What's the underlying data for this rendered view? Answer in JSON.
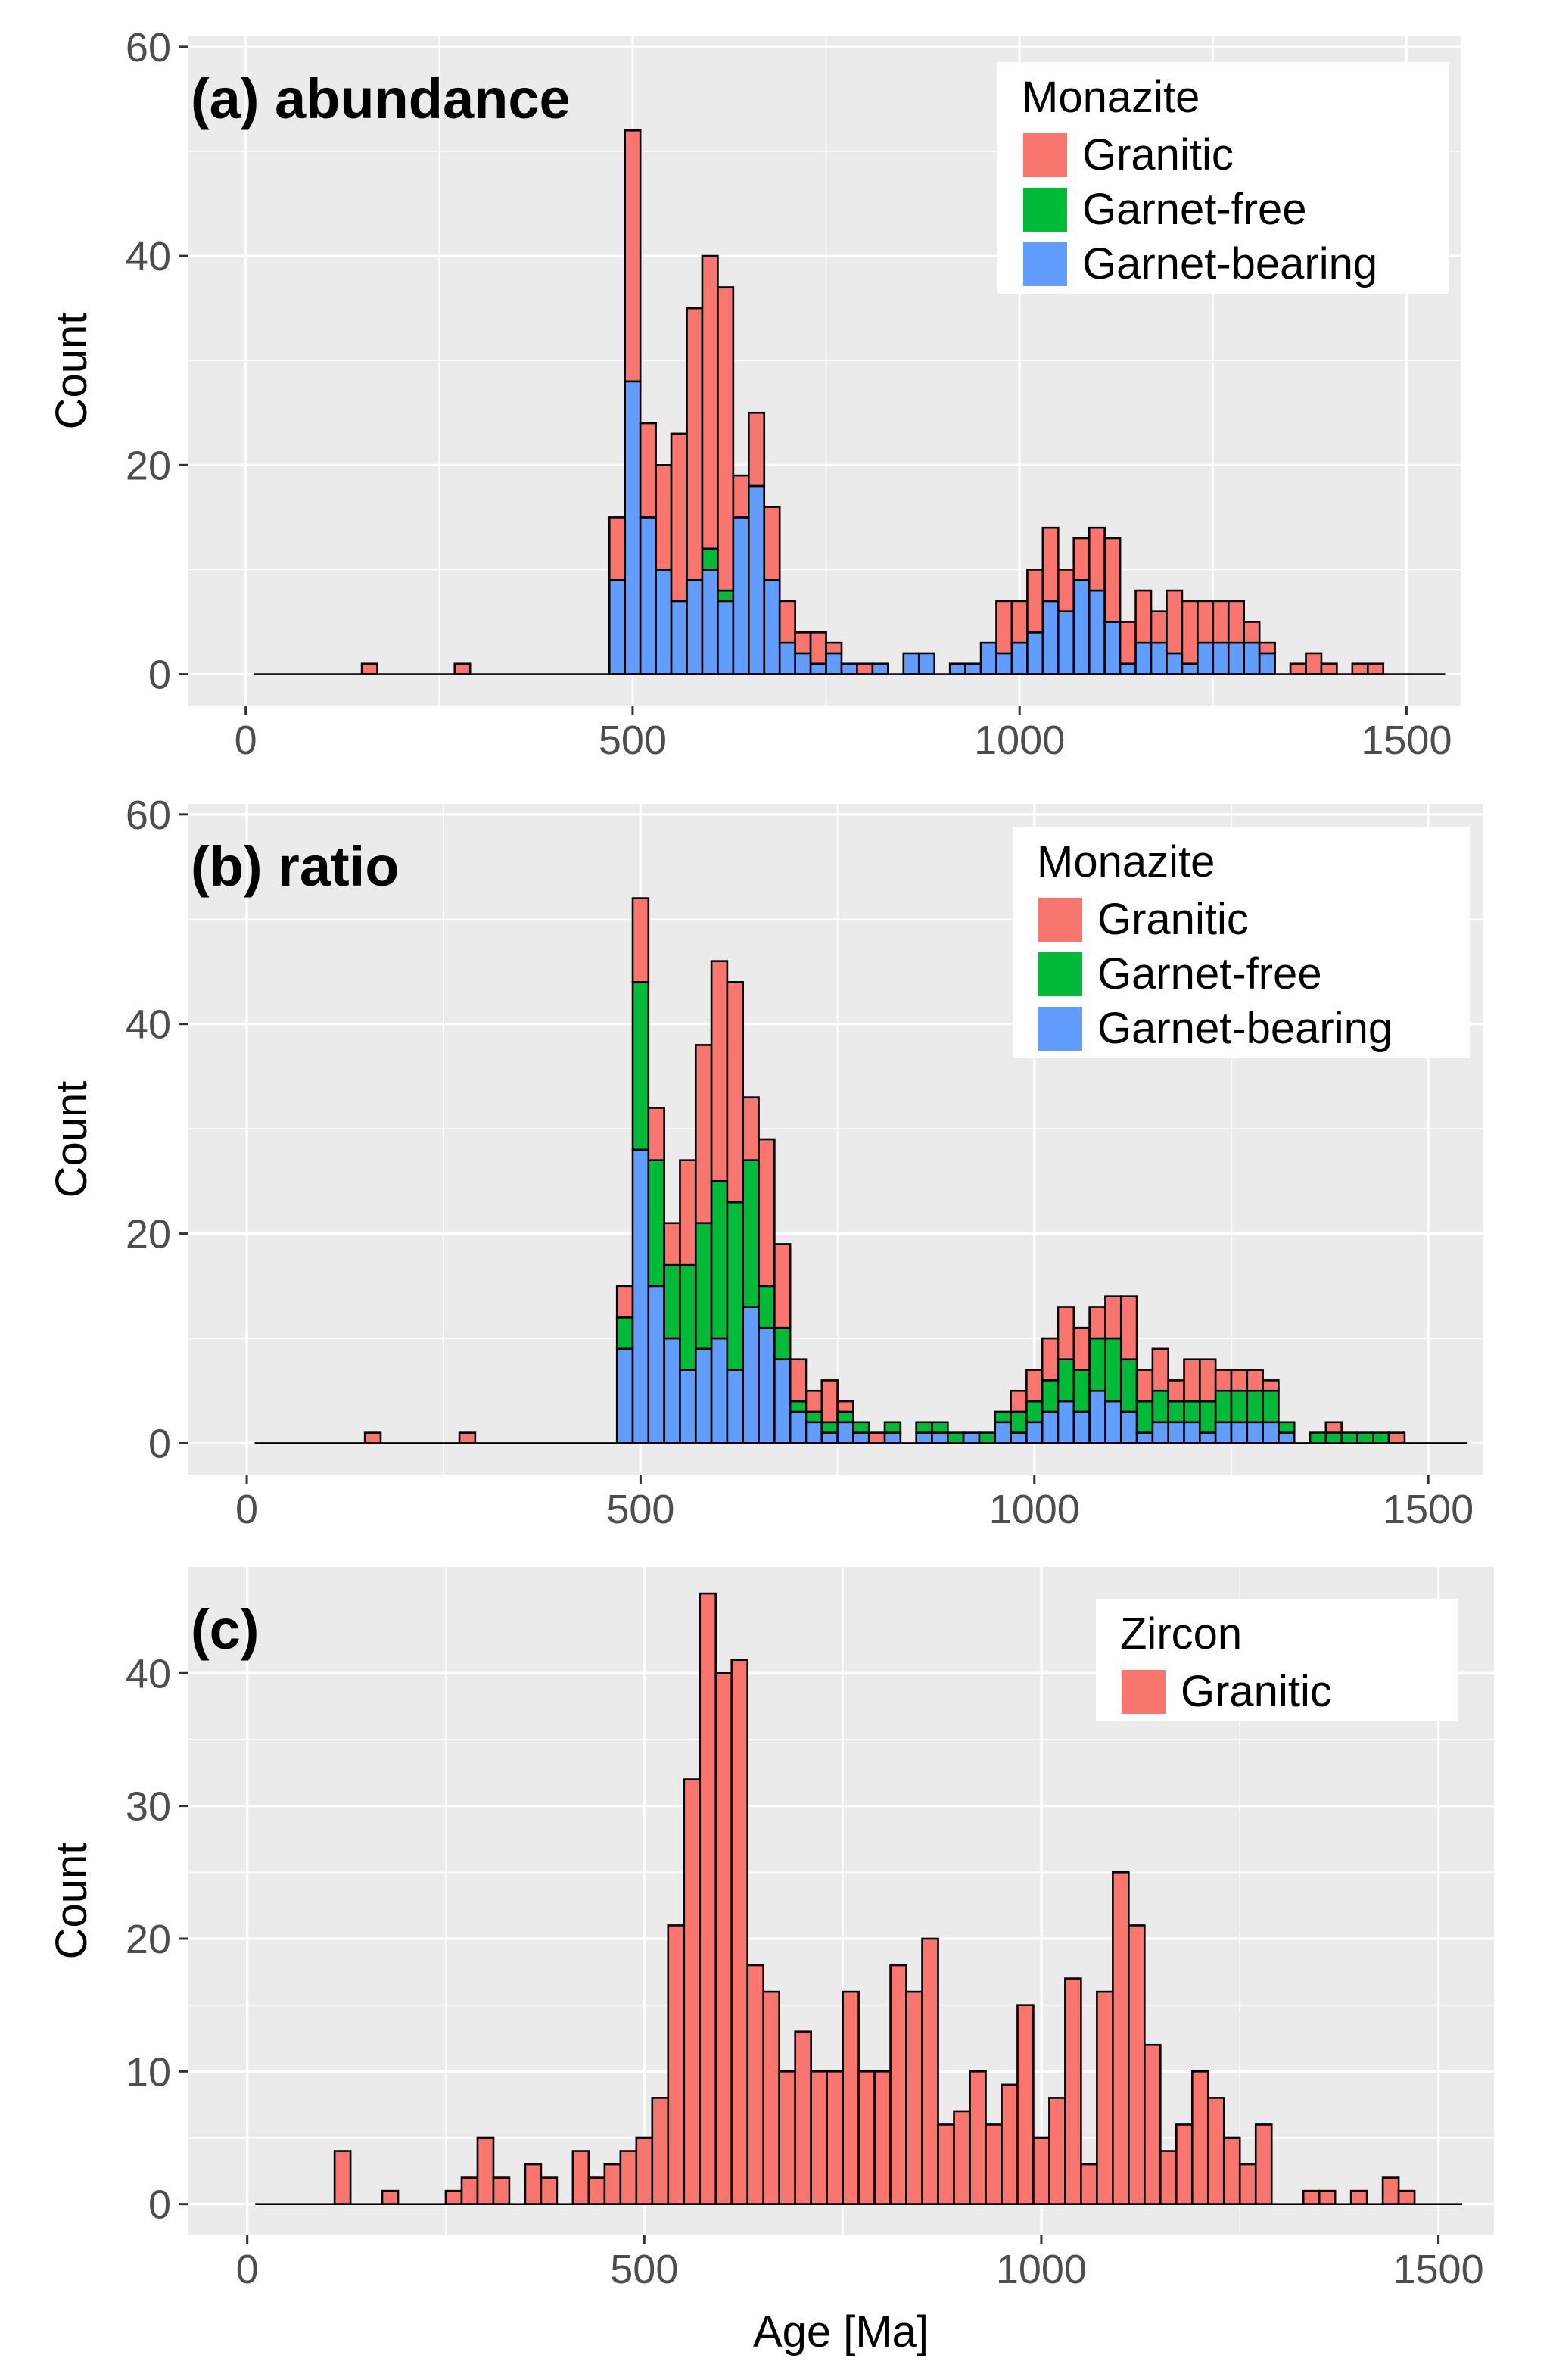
{
  "chart_data": [
    {
      "type": "bar",
      "stacked": true,
      "panel_label": "(a) abundance",
      "ylabel": "Count",
      "xlabel": "",
      "xlim": [
        -75,
        1570
      ],
      "ylim": [
        -3,
        61
      ],
      "x_ticks": [
        0,
        500,
        1000,
        1500
      ],
      "y_ticks": [
        0,
        20,
        40,
        60
      ],
      "bin_width": 20,
      "bin_start": 10,
      "legend_title": "Monazite",
      "legend_position": "top-right",
      "series": [
        {
          "name": "Granitic",
          "color": "#F8766D",
          "values": [
            0,
            0,
            0,
            0,
            0,
            0,
            0,
            1,
            0,
            0,
            0,
            0,
            0,
            1,
            0,
            0,
            0,
            0,
            0,
            0,
            0,
            0,
            0,
            6,
            24,
            9,
            10,
            16,
            26,
            28,
            29,
            4,
            7,
            7,
            4,
            2,
            3,
            1,
            0,
            1,
            0,
            0,
            0,
            0,
            0,
            0,
            0,
            0,
            5,
            4,
            6,
            7,
            4,
            4,
            6,
            8,
            4,
            5,
            3,
            6,
            6,
            4,
            4,
            4,
            2,
            1,
            0,
            1,
            2,
            1,
            0,
            1,
            1,
            0,
            0,
            0,
            0
          ]
        },
        {
          "name": "Garnet-free",
          "color": "#00BA38",
          "values": [
            0,
            0,
            0,
            0,
            0,
            0,
            0,
            0,
            0,
            0,
            0,
            0,
            0,
            0,
            0,
            0,
            0,
            0,
            0,
            0,
            0,
            0,
            0,
            0,
            0,
            0,
            0,
            0,
            0,
            2,
            1,
            0,
            0,
            0,
            0,
            0,
            0,
            0,
            0,
            0,
            0,
            0,
            0,
            0,
            0,
            0,
            0,
            0,
            0,
            0,
            0,
            0,
            0,
            0,
            0,
            0,
            0,
            0,
            0,
            0,
            0,
            0,
            0,
            0,
            0,
            0,
            0,
            0,
            0,
            0,
            0,
            0,
            0,
            0,
            0,
            0,
            0
          ]
        },
        {
          "name": "Garnet-bearing",
          "color": "#619CFF",
          "values": [
            0,
            0,
            0,
            0,
            0,
            0,
            0,
            0,
            0,
            0,
            0,
            0,
            0,
            0,
            0,
            0,
            0,
            0,
            0,
            0,
            0,
            0,
            0,
            9,
            28,
            15,
            10,
            7,
            9,
            10,
            7,
            15,
            18,
            9,
            3,
            2,
            1,
            2,
            1,
            0,
            1,
            0,
            2,
            2,
            0,
            1,
            1,
            3,
            2,
            3,
            4,
            7,
            6,
            9,
            8,
            5,
            1,
            3,
            3,
            2,
            1,
            3,
            3,
            3,
            3,
            2,
            0,
            0,
            0,
            0,
            0,
            0,
            0,
            0,
            0,
            0,
            0
          ]
        }
      ]
    },
    {
      "type": "bar",
      "stacked": true,
      "panel_label": "(b) ratio",
      "ylabel": "Count",
      "xlabel": "",
      "xlim": [
        -75,
        1570
      ],
      "ylim": [
        -3,
        61
      ],
      "x_ticks": [
        0,
        500,
        1000,
        1500
      ],
      "y_ticks": [
        0,
        20,
        40,
        60
      ],
      "bin_width": 20,
      "bin_start": 10,
      "legend_title": "Monazite",
      "legend_position": "top-right",
      "series": [
        {
          "name": "Granitic",
          "color": "#F8766D",
          "values": [
            0,
            0,
            0,
            0,
            0,
            0,
            0,
            1,
            0,
            0,
            0,
            0,
            0,
            1,
            0,
            0,
            0,
            0,
            0,
            0,
            0,
            0,
            0,
            3,
            8,
            5,
            4,
            10,
            17,
            21,
            21,
            6,
            14,
            8,
            4,
            2,
            4,
            1,
            0,
            1,
            0,
            0,
            0,
            0,
            0,
            0,
            0,
            0,
            2,
            3,
            4,
            5,
            4,
            3,
            4,
            6,
            3,
            4,
            2,
            4,
            4,
            2,
            2,
            2,
            1,
            0,
            0,
            0,
            1,
            0,
            0,
            0,
            1,
            0,
            0,
            0,
            0
          ]
        },
        {
          "name": "Garnet-free",
          "color": "#00BA38",
          "values": [
            0,
            0,
            0,
            0,
            0,
            0,
            0,
            0,
            0,
            0,
            0,
            0,
            0,
            0,
            0,
            0,
            0,
            0,
            0,
            0,
            0,
            0,
            0,
            3,
            16,
            12,
            7,
            10,
            12,
            15,
            16,
            14,
            4,
            3,
            1,
            1,
            1,
            1,
            1,
            0,
            1,
            0,
            1,
            1,
            1,
            0,
            1,
            1,
            2,
            2,
            3,
            4,
            4,
            5,
            6,
            5,
            3,
            3,
            2,
            2,
            3,
            3,
            3,
            3,
            3,
            1,
            0,
            1,
            1,
            1,
            1,
            1,
            0,
            0,
            0,
            0,
            0
          ]
        },
        {
          "name": "Garnet-bearing",
          "color": "#619CFF",
          "values": [
            0,
            0,
            0,
            0,
            0,
            0,
            0,
            0,
            0,
            0,
            0,
            0,
            0,
            0,
            0,
            0,
            0,
            0,
            0,
            0,
            0,
            0,
            0,
            9,
            28,
            15,
            10,
            7,
            9,
            10,
            7,
            13,
            11,
            8,
            3,
            2,
            1,
            2,
            1,
            0,
            1,
            0,
            1,
            1,
            0,
            1,
            0,
            2,
            1,
            2,
            3,
            4,
            3,
            5,
            4,
            3,
            1,
            2,
            2,
            2,
            1,
            2,
            2,
            2,
            2,
            1,
            0,
            0,
            0,
            0,
            0,
            0,
            0,
            0,
            0,
            0,
            0
          ]
        }
      ]
    },
    {
      "type": "bar",
      "stacked": false,
      "panel_label": "(c)",
      "ylabel": "Count",
      "xlabel": "Age [Ma]",
      "xlim": [
        -75,
        1570
      ],
      "ylim": [
        -2.3,
        48
      ],
      "x_ticks": [
        0,
        500,
        1000,
        1500
      ],
      "y_ticks": [
        0,
        10,
        20,
        30,
        40
      ],
      "bin_width": 20,
      "bin_start": 10,
      "legend_title": "Zircon",
      "legend_position": "top-right",
      "series": [
        {
          "name": "Granitic",
          "color": "#F8766D",
          "values": [
            0,
            0,
            0,
            0,
            0,
            4,
            0,
            0,
            1,
            0,
            0,
            0,
            1,
            2,
            5,
            2,
            0,
            3,
            2,
            0,
            4,
            2,
            3,
            4,
            5,
            8,
            21,
            32,
            46,
            40,
            41,
            18,
            16,
            10,
            13,
            10,
            10,
            16,
            10,
            10,
            18,
            16,
            20,
            6,
            7,
            10,
            6,
            9,
            15,
            5,
            8,
            17,
            3,
            16,
            25,
            21,
            12,
            4,
            6,
            10,
            8,
            5,
            3,
            6,
            0,
            0,
            1,
            1,
            0,
            1,
            0,
            2,
            1,
            0,
            0,
            0
          ]
        }
      ]
    }
  ]
}
